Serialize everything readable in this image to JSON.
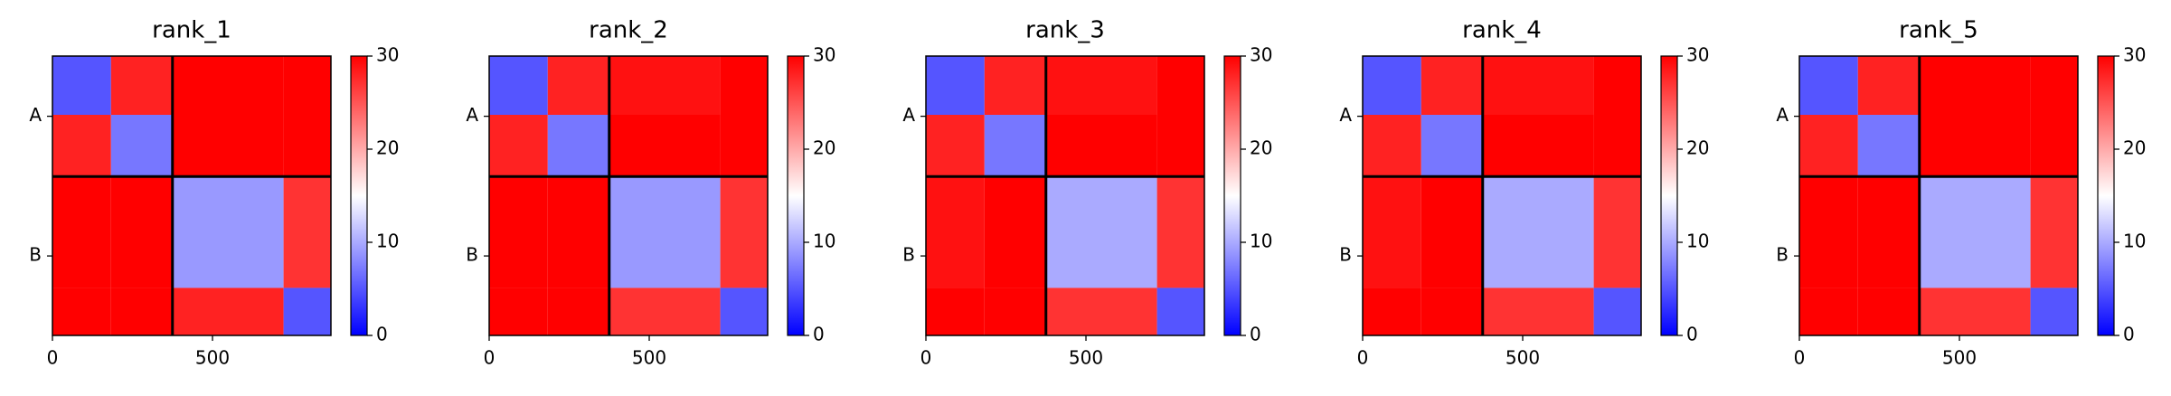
{
  "chart_data": [
    {
      "type": "heatmap",
      "title": "rank_1",
      "bins": [
        0,
        183,
        375,
        722,
        870
      ],
      "values": [
        [
          5,
          28,
          30,
          30
        ],
        [
          28,
          7,
          30,
          30
        ],
        [
          30,
          30,
          9,
          27
        ],
        [
          30,
          30,
          28,
          5
        ]
      ],
      "xlim": [
        0,
        870
      ],
      "xticks": [
        0,
        500
      ],
      "ylim": [
        0,
        870
      ],
      "yticks": [
        {
          "value": 187.5,
          "label": "A"
        },
        {
          "value": 622.5,
          "label": "B"
        }
      ],
      "chain_breaks": [
        375
      ],
      "clim": [
        0,
        30
      ],
      "cticks": [
        0,
        10,
        20,
        30
      ],
      "colormap": [
        "#0000ff",
        "#ffffff",
        "#ff0000"
      ]
    },
    {
      "type": "heatmap",
      "title": "rank_2",
      "bins": [
        0,
        183,
        375,
        722,
        870
      ],
      "values": [
        [
          5,
          28,
          29,
          30
        ],
        [
          28,
          7,
          30,
          30
        ],
        [
          30,
          30,
          9,
          27
        ],
        [
          30,
          30,
          27,
          5
        ]
      ],
      "xlim": [
        0,
        870
      ],
      "xticks": [
        0,
        500
      ],
      "ylim": [
        0,
        870
      ],
      "yticks": [
        {
          "value": 187.5,
          "label": "A"
        },
        {
          "value": 622.5,
          "label": "B"
        }
      ],
      "chain_breaks": [
        375
      ],
      "clim": [
        0,
        30
      ],
      "cticks": [
        0,
        10,
        20,
        30
      ],
      "colormap": [
        "#0000ff",
        "#ffffff",
        "#ff0000"
      ]
    },
    {
      "type": "heatmap",
      "title": "rank_3",
      "bins": [
        0,
        183,
        375,
        722,
        870
      ],
      "values": [
        [
          5,
          28,
          29,
          30
        ],
        [
          28,
          7,
          30,
          30
        ],
        [
          29,
          30,
          10,
          27
        ],
        [
          30,
          30,
          27,
          5
        ]
      ],
      "xlim": [
        0,
        870
      ],
      "xticks": [
        0,
        500
      ],
      "ylim": [
        0,
        870
      ],
      "yticks": [
        {
          "value": 187.5,
          "label": "A"
        },
        {
          "value": 622.5,
          "label": "B"
        }
      ],
      "chain_breaks": [
        375
      ],
      "clim": [
        0,
        30
      ],
      "cticks": [
        0,
        10,
        20,
        30
      ],
      "colormap": [
        "#0000ff",
        "#ffffff",
        "#ff0000"
      ]
    },
    {
      "type": "heatmap",
      "title": "rank_4",
      "bins": [
        0,
        183,
        375,
        722,
        870
      ],
      "values": [
        [
          5,
          28,
          29,
          30
        ],
        [
          28,
          7,
          30,
          30
        ],
        [
          29,
          30,
          10,
          27
        ],
        [
          30,
          30,
          27,
          5
        ]
      ],
      "xlim": [
        0,
        870
      ],
      "xticks": [
        0,
        500
      ],
      "ylim": [
        0,
        870
      ],
      "yticks": [
        {
          "value": 187.5,
          "label": "A"
        },
        {
          "value": 622.5,
          "label": "B"
        }
      ],
      "chain_breaks": [
        375
      ],
      "clim": [
        0,
        30
      ],
      "cticks": [
        0,
        10,
        20,
        30
      ],
      "colormap": [
        "#0000ff",
        "#ffffff",
        "#ff0000"
      ]
    },
    {
      "type": "heatmap",
      "title": "rank_5",
      "bins": [
        0,
        183,
        375,
        722,
        870
      ],
      "values": [
        [
          5,
          28,
          30,
          30
        ],
        [
          28,
          7,
          30,
          30
        ],
        [
          30,
          30,
          10,
          27
        ],
        [
          30,
          30,
          27,
          5
        ]
      ],
      "xlim": [
        0,
        870
      ],
      "xticks": [
        0,
        500
      ],
      "ylim": [
        0,
        870
      ],
      "yticks": [
        {
          "value": 187.5,
          "label": "A"
        },
        {
          "value": 622.5,
          "label": "B"
        }
      ],
      "chain_breaks": [
        375
      ],
      "clim": [
        0,
        30
      ],
      "cticks": [
        0,
        10,
        20,
        30
      ],
      "colormap": [
        "#0000ff",
        "#ffffff",
        "#ff0000"
      ]
    }
  ]
}
